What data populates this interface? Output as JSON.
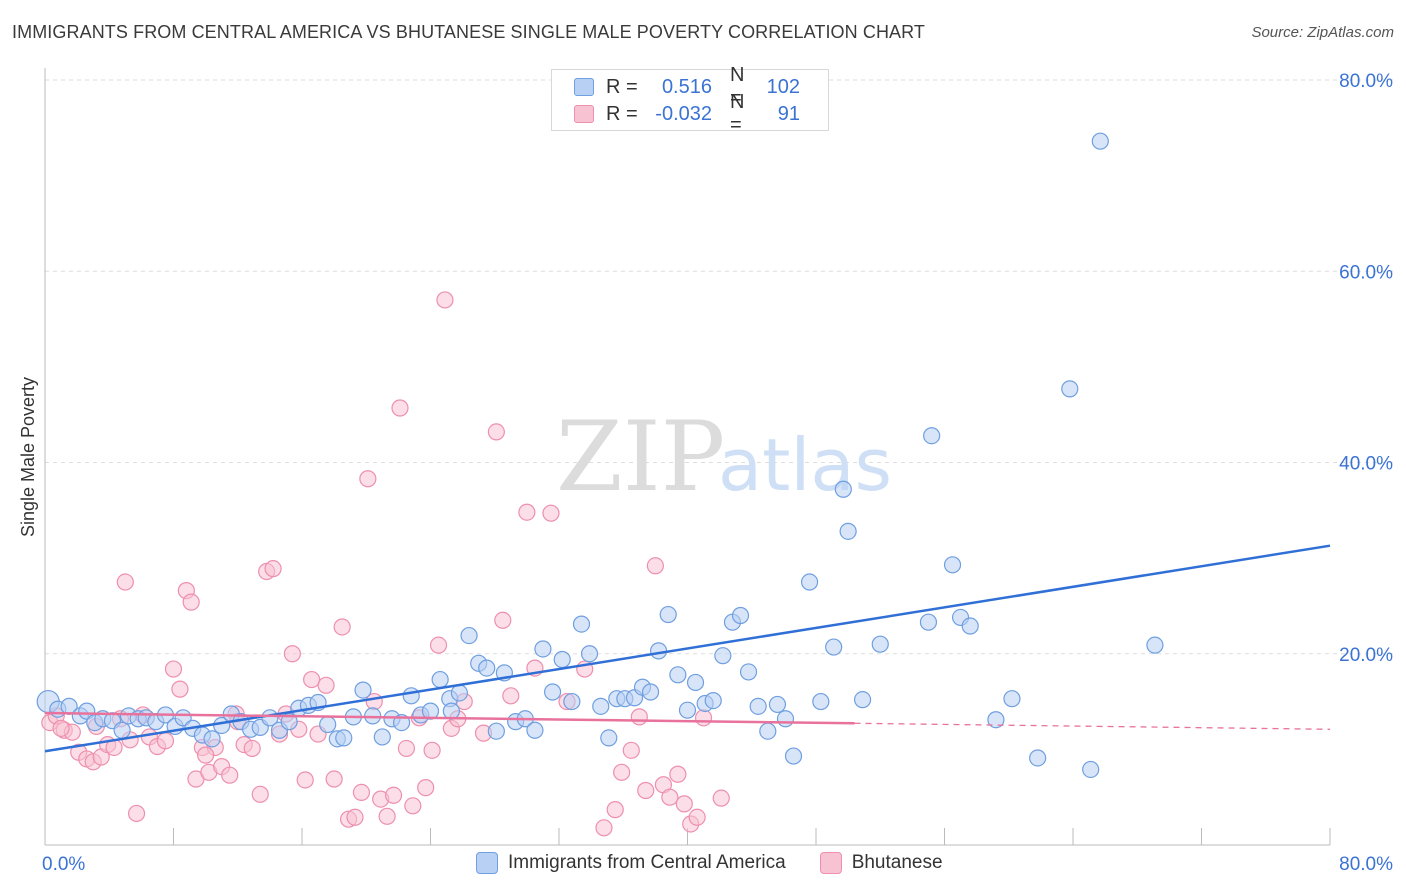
{
  "title": "IMMIGRANTS FROM CENTRAL AMERICA VS BHUTANESE SINGLE MALE POVERTY CORRELATION CHART",
  "source": "Source: ZipAtlas.com",
  "watermark": {
    "zip": "ZIP",
    "atlas": "atlas"
  },
  "colors": {
    "blue_fill": "#b8d0f4",
    "blue_stroke": "#6f9fe0",
    "blue_line": "#2f6fd6",
    "pink_fill": "#f7c3d3",
    "pink_stroke": "#ee8fae",
    "pink_line": "#e8729c",
    "axis_label": "#3b73d4",
    "grid": "#dddddd"
  },
  "legend": {
    "rows": [
      {
        "series": "blue",
        "r_label": "R =",
        "r_value": "0.516",
        "n_label": "N =",
        "n_value": "102"
      },
      {
        "series": "pink",
        "r_label": "R =",
        "r_value": "-0.032",
        "n_label": "N =",
        "n_value": "91"
      }
    ]
  },
  "bottom_legend": [
    {
      "series": "blue",
      "label": "Immigrants from Central America"
    },
    {
      "series": "pink",
      "label": "Bhutanese"
    }
  ],
  "chart_data": {
    "type": "scatter",
    "title": "IMMIGRANTS FROM CENTRAL AMERICA VS BHUTANESE SINGLE MALE POVERTY CORRELATION CHART",
    "xlabel": "",
    "ylabel": "Single Male Poverty",
    "xlim": [
      0,
      80
    ],
    "ylim": [
      0,
      80
    ],
    "x_tick_labels": [
      {
        "value": 0,
        "label": "0.0%"
      },
      {
        "value": 80,
        "label": "80.0%"
      }
    ],
    "y_tick_labels": [
      {
        "value": 20,
        "label": "20.0%"
      },
      {
        "value": 40,
        "label": "40.0%"
      },
      {
        "value": 60,
        "label": "60.0%"
      },
      {
        "value": 80,
        "label": "80.0%"
      }
    ],
    "grid": true,
    "legend_position": "top-center",
    "series": [
      {
        "name": "Immigrants from Central America",
        "color": "blue",
        "R": 0.516,
        "N": 102,
        "trend": {
          "x0": 0,
          "y0": 9.8,
          "x1": 80,
          "y1": 31.3,
          "dashed_from": null
        },
        "points": [
          [
            0.2,
            15.0
          ],
          [
            0.8,
            14.2
          ],
          [
            1.5,
            14.5
          ],
          [
            2.2,
            13.5
          ],
          [
            2.6,
            14.0
          ],
          [
            3.1,
            12.8
          ],
          [
            3.6,
            13.2
          ],
          [
            4.2,
            13.0
          ],
          [
            4.8,
            12.0
          ],
          [
            5.2,
            13.5
          ],
          [
            5.8,
            13.2
          ],
          [
            6.3,
            13.3
          ],
          [
            6.9,
            12.9
          ],
          [
            7.5,
            13.6
          ],
          [
            8.1,
            12.4
          ],
          [
            8.6,
            13.3
          ],
          [
            9.2,
            12.2
          ],
          [
            9.8,
            11.5
          ],
          [
            10.4,
            11.1
          ],
          [
            11.0,
            12.5
          ],
          [
            11.6,
            13.7
          ],
          [
            12.2,
            12.9
          ],
          [
            12.8,
            12.1
          ],
          [
            13.4,
            12.3
          ],
          [
            14.0,
            13.3
          ],
          [
            14.6,
            12.0
          ],
          [
            15.2,
            12.9
          ],
          [
            15.8,
            14.3
          ],
          [
            16.4,
            14.6
          ],
          [
            17.0,
            14.9
          ],
          [
            17.6,
            12.6
          ],
          [
            18.2,
            11.1
          ],
          [
            18.6,
            11.2
          ],
          [
            19.2,
            13.4
          ],
          [
            19.8,
            16.2
          ],
          [
            20.4,
            13.5
          ],
          [
            21.0,
            11.3
          ],
          [
            21.6,
            13.2
          ],
          [
            22.2,
            12.8
          ],
          [
            22.8,
            15.6
          ],
          [
            23.4,
            13.6
          ],
          [
            24.0,
            14.0
          ],
          [
            24.6,
            17.3
          ],
          [
            25.2,
            15.3
          ],
          [
            25.8,
            15.9
          ],
          [
            26.4,
            21.9
          ],
          [
            27.0,
            19.0
          ],
          [
            27.5,
            18.5
          ],
          [
            28.1,
            11.9
          ],
          [
            28.6,
            18.0
          ],
          [
            29.3,
            12.9
          ],
          [
            29.9,
            13.2
          ],
          [
            30.5,
            12.0
          ],
          [
            31.0,
            20.5
          ],
          [
            31.6,
            16.0
          ],
          [
            32.2,
            19.4
          ],
          [
            32.8,
            15.0
          ],
          [
            33.4,
            23.1
          ],
          [
            33.9,
            20.0
          ],
          [
            34.6,
            14.5
          ],
          [
            35.1,
            11.2
          ],
          [
            35.6,
            15.3
          ],
          [
            36.1,
            15.3
          ],
          [
            36.7,
            15.4
          ],
          [
            37.2,
            16.5
          ],
          [
            37.7,
            16.0
          ],
          [
            38.2,
            20.3
          ],
          [
            38.8,
            24.1
          ],
          [
            39.4,
            17.8
          ],
          [
            40.0,
            14.1
          ],
          [
            40.5,
            17.0
          ],
          [
            41.1,
            14.8
          ],
          [
            41.6,
            15.1
          ],
          [
            42.2,
            19.8
          ],
          [
            42.8,
            23.3
          ],
          [
            43.3,
            24.0
          ],
          [
            43.8,
            18.1
          ],
          [
            44.4,
            14.5
          ],
          [
            45.0,
            11.9
          ],
          [
            45.6,
            14.7
          ],
          [
            46.1,
            13.2
          ],
          [
            46.6,
            9.3
          ],
          [
            47.6,
            27.5
          ],
          [
            48.3,
            15.0
          ],
          [
            49.1,
            20.7
          ],
          [
            49.7,
            37.2
          ],
          [
            50.0,
            32.8
          ],
          [
            50.9,
            15.2
          ],
          [
            52.0,
            21.0
          ],
          [
            55.0,
            23.3
          ],
          [
            55.2,
            42.8
          ],
          [
            56.5,
            29.3
          ],
          [
            57.0,
            23.8
          ],
          [
            57.6,
            22.9
          ],
          [
            59.2,
            13.1
          ],
          [
            60.2,
            15.3
          ],
          [
            61.8,
            9.1
          ],
          [
            63.8,
            47.7
          ],
          [
            65.1,
            7.9
          ],
          [
            65.7,
            73.6
          ],
          [
            69.1,
            20.9
          ],
          [
            25.3,
            14.0
          ]
        ]
      },
      {
        "name": "Bhutanese",
        "color": "pink",
        "R": -0.032,
        "N": 91,
        "trend": {
          "x0": 0,
          "y0": 13.8,
          "x1": 80,
          "y1": 12.1,
          "dashed_from": 50.4
        },
        "points": [
          [
            0.3,
            12.8
          ],
          [
            0.7,
            13.5
          ],
          [
            1.2,
            12.0
          ],
          [
            1.7,
            11.8
          ],
          [
            2.1,
            9.7
          ],
          [
            2.6,
            9.0
          ],
          [
            3.0,
            8.7
          ],
          [
            3.5,
            9.2
          ],
          [
            3.9,
            10.5
          ],
          [
            4.3,
            10.2
          ],
          [
            4.7,
            13.2
          ],
          [
            5.0,
            27.5
          ],
          [
            5.3,
            11.0
          ],
          [
            5.7,
            3.3
          ],
          [
            6.1,
            13.6
          ],
          [
            6.5,
            11.3
          ],
          [
            7.0,
            10.3
          ],
          [
            7.5,
            10.9
          ],
          [
            8.0,
            18.4
          ],
          [
            8.4,
            16.3
          ],
          [
            8.8,
            26.6
          ],
          [
            9.1,
            25.4
          ],
          [
            9.4,
            6.9
          ],
          [
            9.8,
            10.2
          ],
          [
            10.2,
            7.6
          ],
          [
            10.6,
            10.2
          ],
          [
            11.0,
            8.2
          ],
          [
            11.5,
            7.3
          ],
          [
            11.9,
            13.7
          ],
          [
            12.4,
            10.5
          ],
          [
            12.9,
            10.1
          ],
          [
            13.4,
            5.3
          ],
          [
            13.8,
            28.6
          ],
          [
            14.2,
            28.9
          ],
          [
            14.6,
            11.6
          ],
          [
            15.0,
            13.7
          ],
          [
            15.4,
            20.0
          ],
          [
            15.8,
            12.1
          ],
          [
            16.2,
            6.8
          ],
          [
            16.6,
            17.3
          ],
          [
            17.0,
            11.6
          ],
          [
            17.5,
            16.7
          ],
          [
            18.0,
            6.9
          ],
          [
            18.5,
            22.8
          ],
          [
            18.9,
            2.7
          ],
          [
            19.3,
            2.9
          ],
          [
            19.7,
            5.5
          ],
          [
            20.1,
            38.3
          ],
          [
            20.5,
            15.0
          ],
          [
            20.9,
            4.8
          ],
          [
            21.3,
            3.0
          ],
          [
            21.7,
            5.2
          ],
          [
            22.1,
            45.7
          ],
          [
            22.5,
            10.1
          ],
          [
            22.9,
            4.1
          ],
          [
            23.3,
            13.3
          ],
          [
            23.7,
            6.0
          ],
          [
            24.1,
            9.9
          ],
          [
            24.5,
            20.9
          ],
          [
            24.9,
            57.0
          ],
          [
            25.3,
            12.2
          ],
          [
            25.7,
            13.2
          ],
          [
            26.1,
            15.0
          ],
          [
            27.3,
            11.7
          ],
          [
            28.1,
            43.2
          ],
          [
            28.5,
            23.5
          ],
          [
            29.0,
            15.6
          ],
          [
            30.0,
            34.8
          ],
          [
            30.5,
            18.5
          ],
          [
            31.5,
            34.7
          ],
          [
            32.5,
            15.0
          ],
          [
            33.6,
            18.4
          ],
          [
            34.8,
            1.8
          ],
          [
            35.5,
            3.7
          ],
          [
            35.9,
            7.6
          ],
          [
            36.5,
            9.9
          ],
          [
            37.0,
            13.4
          ],
          [
            37.4,
            5.7
          ],
          [
            38.0,
            29.2
          ],
          [
            38.5,
            6.3
          ],
          [
            38.9,
            5.0
          ],
          [
            39.4,
            7.4
          ],
          [
            39.8,
            4.3
          ],
          [
            40.2,
            2.2
          ],
          [
            40.6,
            2.9
          ],
          [
            41.0,
            13.3
          ],
          [
            42.1,
            4.9
          ],
          [
            10.0,
            9.4
          ],
          [
            12.0,
            12.9
          ],
          [
            3.2,
            12.4
          ],
          [
            1.0,
            12.2
          ]
        ]
      }
    ]
  }
}
